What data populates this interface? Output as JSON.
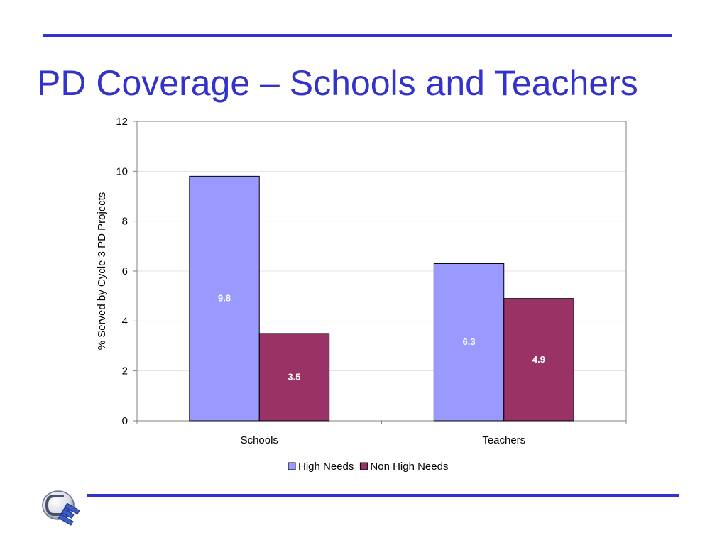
{
  "slide": {
    "title": "PD Coverage – Schools and Teachers"
  },
  "chart_data": {
    "type": "bar",
    "title": "",
    "xlabel": "",
    "ylabel": "% Served by Cycle 3 PD Projects",
    "categories": [
      "Schools",
      "Teachers"
    ],
    "series": [
      {
        "name": "High Needs",
        "values": [
          9.8,
          6.3
        ],
        "color": "#9999ff"
      },
      {
        "name": "Non High Needs",
        "values": [
          3.5,
          4.9
        ],
        "color": "#993366"
      }
    ],
    "ylim": [
      0,
      12
    ],
    "yticks": [
      0,
      2,
      4,
      6,
      8,
      10,
      12
    ],
    "grid": true,
    "legend": "bottom",
    "data_labels": true
  },
  "colors": {
    "title": "#3333cc",
    "rule": "#3333cc"
  },
  "logo": {
    "icon": "ce-logo-icon"
  }
}
